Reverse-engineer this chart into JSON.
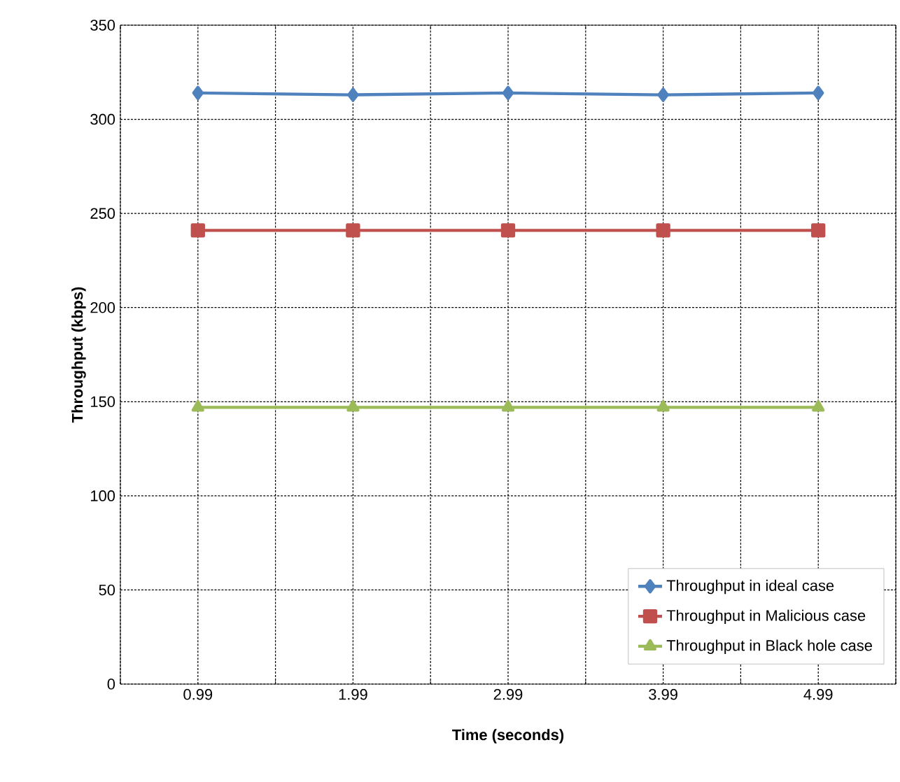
{
  "chart_data": {
    "type": "line",
    "xlabel": "Time (seconds)",
    "ylabel": "Throughput (kbps)",
    "categories": [
      "0.99",
      "1.99",
      "2.99",
      "3.99",
      "4.99"
    ],
    "ylim": [
      0,
      350
    ],
    "yticks": [
      0,
      50,
      100,
      150,
      200,
      250,
      300,
      350
    ],
    "grid": true,
    "legend": "bottom right",
    "series": [
      {
        "name": "Throughput in ideal case",
        "color": "#4f81bd",
        "marker": "diamond",
        "values": [
          314,
          313,
          314,
          313,
          314
        ]
      },
      {
        "name": "Throughput in Malicious case",
        "color": "#c0504d",
        "marker": "square",
        "values": [
          241,
          241,
          241,
          241,
          241
        ]
      },
      {
        "name": "Throughput in Black hole case",
        "color": "#9bbb59",
        "marker": "triangle",
        "values": [
          147,
          147,
          147,
          147,
          147
        ]
      }
    ]
  }
}
